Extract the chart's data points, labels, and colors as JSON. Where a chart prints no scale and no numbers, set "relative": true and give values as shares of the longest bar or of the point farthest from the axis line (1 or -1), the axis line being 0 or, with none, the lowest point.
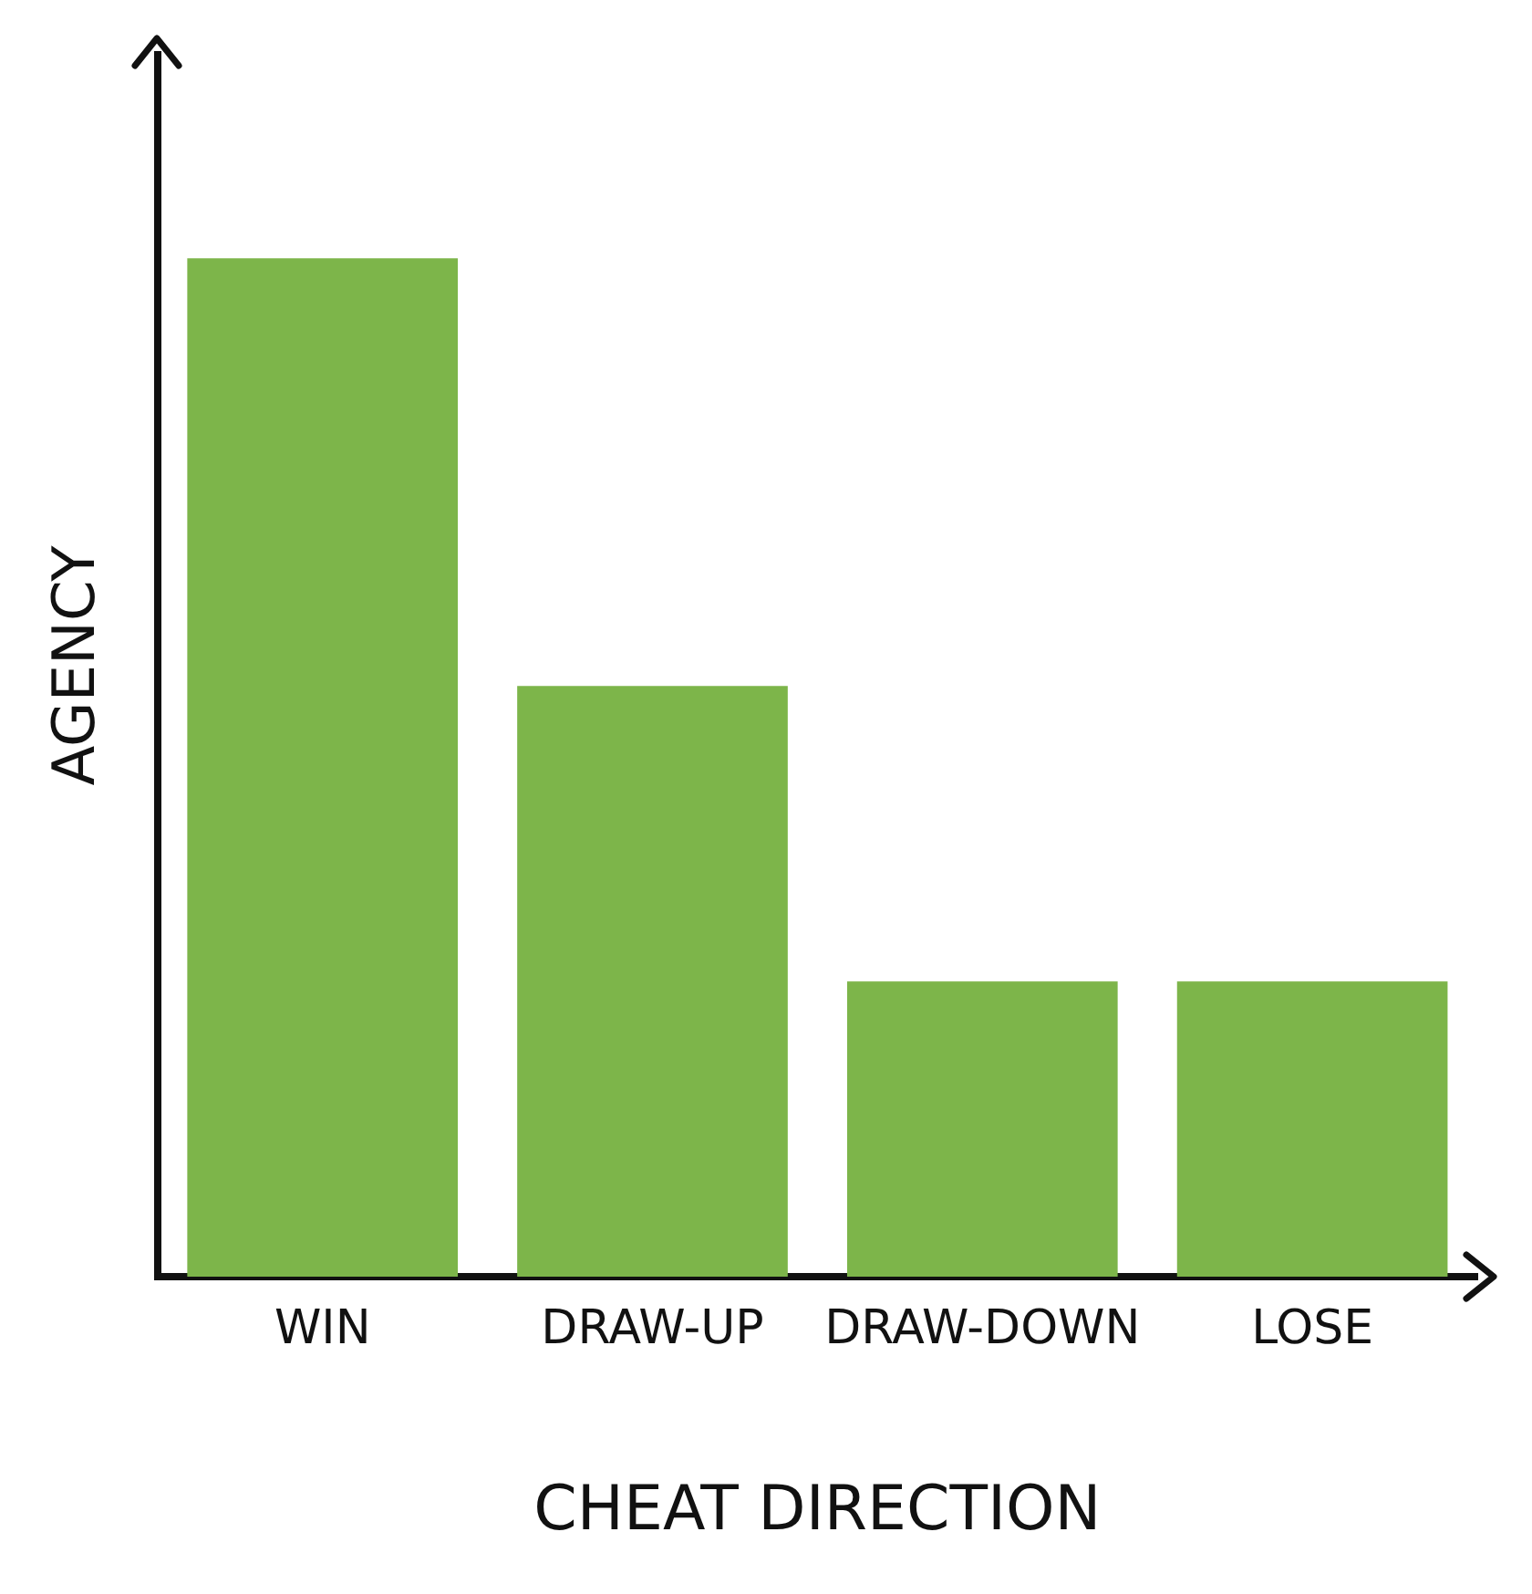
{
  "chart_data": {
    "type": "bar",
    "xlabel": "CHEAT DIRECTION",
    "ylabel": "AGENCY",
    "categories": [
      "WIN",
      "DRAW-UP",
      "DRAW-DOWN",
      "LOSE"
    ],
    "values": [
      1,
      0.58,
      0.29,
      0.29
    ],
    "color": "#7db54a",
    "relative": true,
    "grid": false,
    "legend": false
  }
}
